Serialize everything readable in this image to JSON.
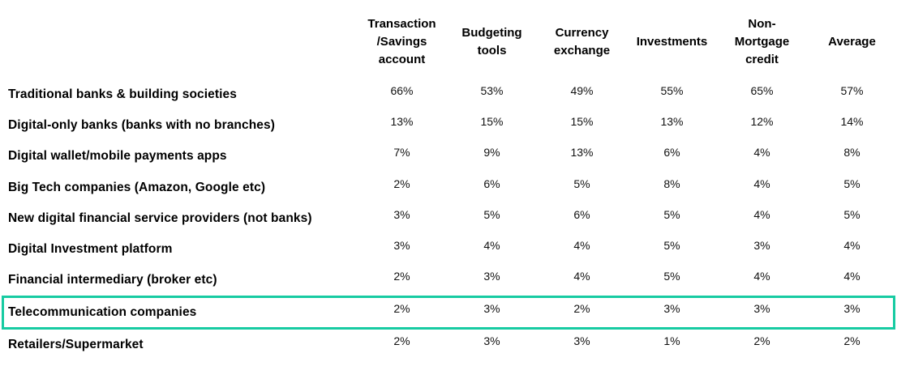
{
  "highlight_color": "#17cba2",
  "table": {
    "columns": [
      "Transaction\n/Savings\naccount",
      "Budgeting\ntools",
      "Currency\nexchange",
      "Investments",
      "Non-\nMortgage\ncredit",
      "Average"
    ],
    "rows": [
      {
        "label": "Traditional banks & building societies",
        "values": [
          "66%",
          "53%",
          "49%",
          "55%",
          "65%",
          "57%"
        ]
      },
      {
        "label": "Digital-only banks (banks with no branches)",
        "values": [
          "13%",
          "15%",
          "15%",
          "13%",
          "12%",
          "14%"
        ]
      },
      {
        "label": "Digital wallet/mobile payments apps",
        "values": [
          "7%",
          "9%",
          "13%",
          "6%",
          "4%",
          "8%"
        ]
      },
      {
        "label": "Big Tech companies (Amazon, Google etc)",
        "values": [
          "2%",
          "6%",
          "5%",
          "8%",
          "4%",
          "5%"
        ]
      },
      {
        "label": "New digital financial service providers (not banks)",
        "values": [
          "3%",
          "5%",
          "6%",
          "5%",
          "4%",
          "5%"
        ]
      },
      {
        "label": "Digital Investment platform",
        "values": [
          "3%",
          "4%",
          "4%",
          "5%",
          "3%",
          "4%"
        ]
      },
      {
        "label": "Financial intermediary (broker etc)",
        "values": [
          "2%",
          "3%",
          "4%",
          "5%",
          "4%",
          "4%"
        ]
      },
      {
        "label": "Telecommunication companies",
        "values": [
          "2%",
          "3%",
          "2%",
          "3%",
          "3%",
          "3%"
        ],
        "highlighted": true
      },
      {
        "label": "Retailers/Supermarket",
        "values": [
          "2%",
          "3%",
          "3%",
          "1%",
          "2%",
          "2%"
        ]
      }
    ]
  },
  "chart_data": {
    "type": "table",
    "columns": [
      "Transaction/Savings account",
      "Budgeting tools",
      "Currency exchange",
      "Investments",
      "Non-Mortgage credit",
      "Average"
    ],
    "row_labels": [
      "Traditional banks & building societies",
      "Digital-only banks (banks with no branches)",
      "Digital wallet/mobile payments apps",
      "Big Tech companies (Amazon, Google etc)",
      "New digital financial service providers (not banks)",
      "Digital Investment platform",
      "Financial intermediary (broker etc)",
      "Telecommunication companies",
      "Retailers/Supermarket"
    ],
    "values_percent": [
      [
        66,
        53,
        49,
        55,
        65,
        57
      ],
      [
        13,
        15,
        15,
        13,
        12,
        14
      ],
      [
        7,
        9,
        13,
        6,
        4,
        8
      ],
      [
        2,
        6,
        5,
        8,
        4,
        5
      ],
      [
        3,
        5,
        6,
        5,
        4,
        5
      ],
      [
        3,
        4,
        4,
        5,
        3,
        4
      ],
      [
        2,
        3,
        4,
        5,
        4,
        4
      ],
      [
        2,
        3,
        2,
        3,
        3,
        3
      ],
      [
        2,
        3,
        3,
        1,
        2,
        2
      ]
    ],
    "highlighted_row": "Telecommunication companies",
    "highlight_style": "teal outline box"
  }
}
